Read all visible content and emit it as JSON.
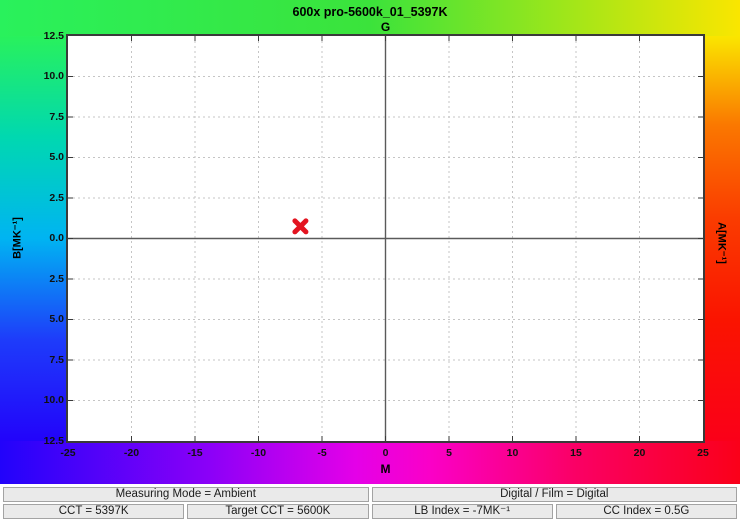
{
  "title": "600x pro-5600k_01_5397K",
  "axis_labels": {
    "top": "G",
    "bottom": "M",
    "left": "B[MK⁻¹]",
    "right": "A[MK⁻¹]"
  },
  "chart_data": {
    "type": "scatter",
    "title": "600x pro-5600k_01_5397K",
    "grid": true,
    "legend": "none",
    "x_axis": {
      "label": "M",
      "opposite_label": "G",
      "min": -25,
      "max": 25,
      "ticks": [
        -25,
        -20,
        -15,
        -10,
        -5,
        0,
        5,
        10,
        15,
        20,
        25
      ],
      "grid_step": 5
    },
    "y_axis": {
      "label_left": "B[MK⁻¹]",
      "label_right": "A[MK⁻¹]",
      "min": -12.5,
      "max": 12.5,
      "tick_values": [
        12.5,
        10,
        7.5,
        5,
        2.5,
        0,
        -2.5,
        -5,
        -7.5,
        -10,
        -12.5
      ],
      "tick_labels": [
        "12.5",
        "10.0",
        "7.5",
        "5.0",
        "2.5",
        "0.0",
        "2.5",
        "5.0",
        "7.5",
        "10.0",
        "12.5"
      ],
      "grid_step": 2.5
    },
    "points": [
      {
        "name": "measurement-marker",
        "x": -6.7,
        "y": 0.75,
        "shape": "x-cross",
        "color": "#e31420"
      }
    ]
  },
  "status_bars": {
    "row1": [
      {
        "label": "Measuring Mode = Ambient"
      },
      {
        "label": "Digital / Film = Digital"
      }
    ],
    "row2": [
      {
        "label": "CCT = 5397K"
      },
      {
        "label": "Target CCT = 5600K"
      },
      {
        "label": "LB Index = -7MK⁻¹"
      },
      {
        "label": "CC Index = 0.5G"
      }
    ]
  },
  "colors": {
    "marker": "#e31420",
    "plot_border": "#3a3a3a",
    "grid_line": "#c5c5c5",
    "zero_line": "#5a5a5a",
    "corner_top_left": "#29f15c",
    "corner_top_right": "#fae600",
    "corner_bottom_left": "#2203fa",
    "corner_bottom_right": "#fa0019",
    "status_cell_bg": "#eaeaea"
  }
}
